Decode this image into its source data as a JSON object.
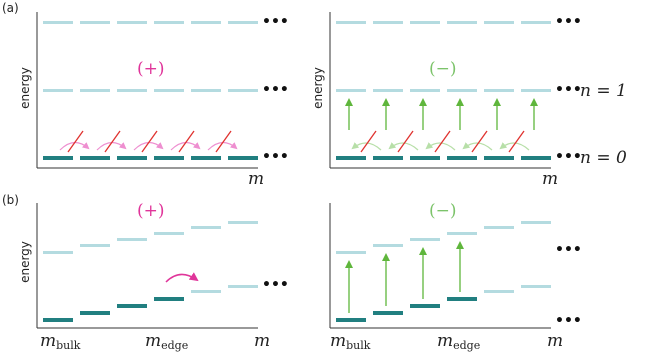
{
  "colors": {
    "upper_level": "#b4dbe0",
    "lower_level": "#217f80",
    "axis": "#333333",
    "plus": "#e0359a",
    "plus_light": "#ee8fd0",
    "minus": "#7cc36a",
    "minus_arrow": "#5fb63c",
    "minus_light": "#b7dfa8",
    "cross": "#e0322f"
  },
  "panel_a": {
    "tag": "(a)",
    "ylabel": "energy",
    "xlabel": "m",
    "left_sign": "(+)",
    "right_sign": "(−)",
    "n1_label": "n = 1",
    "n0_label": "n = 0",
    "ellipsis": "•••"
  },
  "panel_b": {
    "tag": "(b)",
    "ylabel": "energy",
    "xlabel": "m",
    "left_sign": "(+)",
    "right_sign": "(−)",
    "m_bulk": "m",
    "m_bulk_sub": "bulk",
    "m_edge": "m",
    "m_edge_sub": "edge",
    "ellipsis": "•••"
  }
}
